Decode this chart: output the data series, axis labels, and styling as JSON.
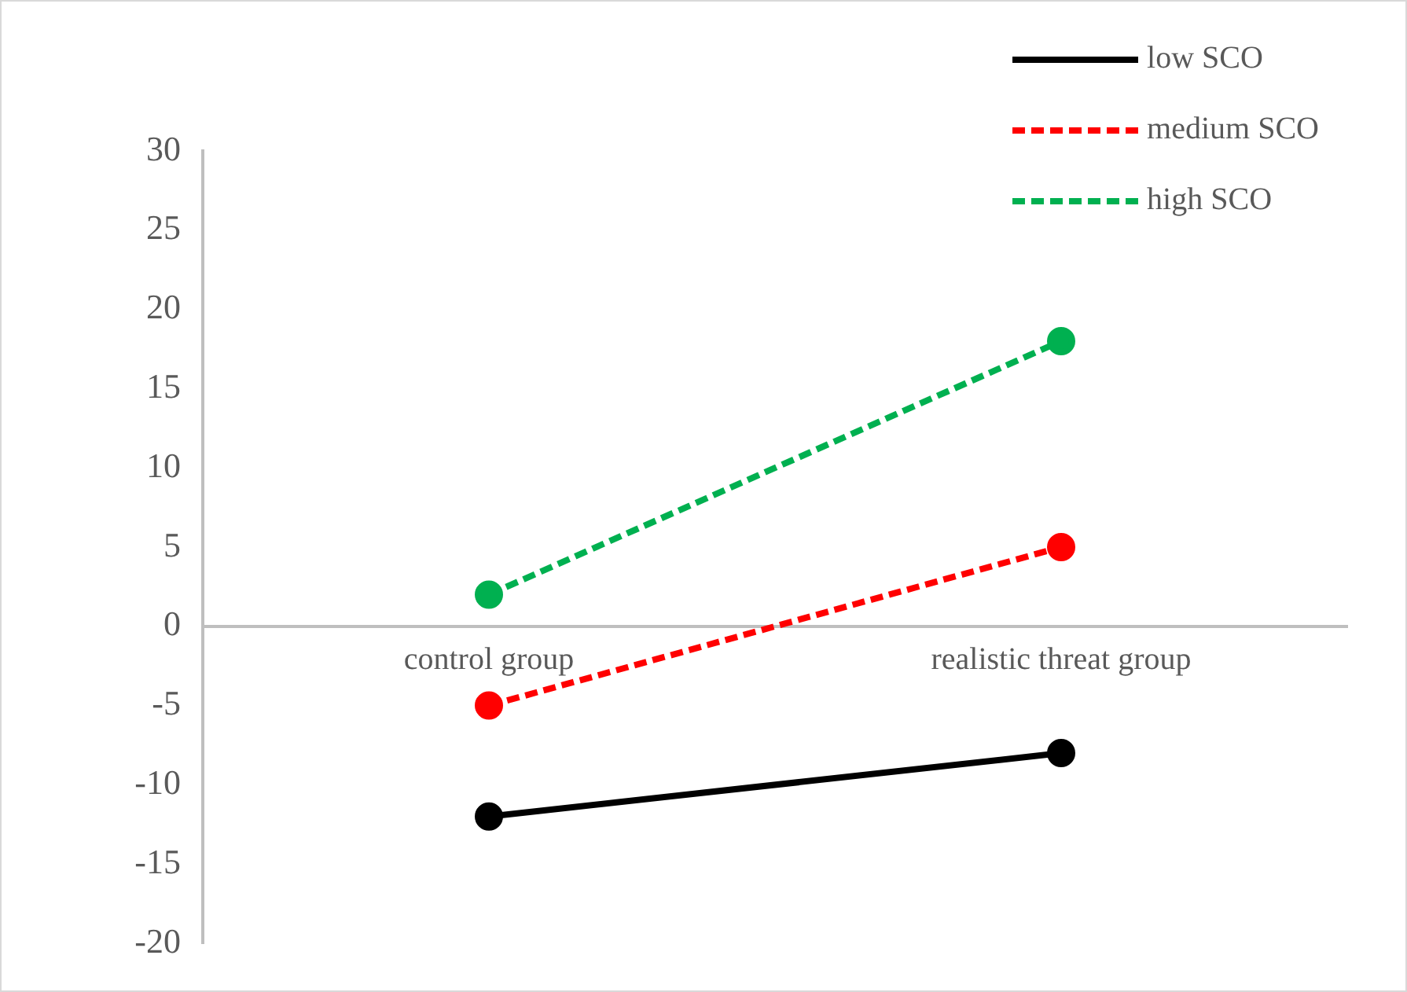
{
  "chart_data": {
    "type": "line",
    "categories": [
      "control group",
      "realistic threat group"
    ],
    "series": [
      {
        "name": "low SCO",
        "color": "#000000",
        "values": [
          -12,
          -8
        ],
        "line_style": "solid"
      },
      {
        "name": "medium SCO",
        "color": "#ff0000",
        "values": [
          -5,
          5
        ],
        "line_style": "dashed"
      },
      {
        "name": "high SCO",
        "color": "#00b050",
        "values": [
          2,
          18
        ],
        "line_style": "dashed"
      }
    ],
    "ylim": [
      -20,
      30
    ],
    "yticks": [
      -20,
      -15,
      -10,
      -5,
      0,
      5,
      10,
      15,
      20,
      25,
      30
    ],
    "grid": false,
    "legend": "top right",
    "marker": "circle"
  }
}
